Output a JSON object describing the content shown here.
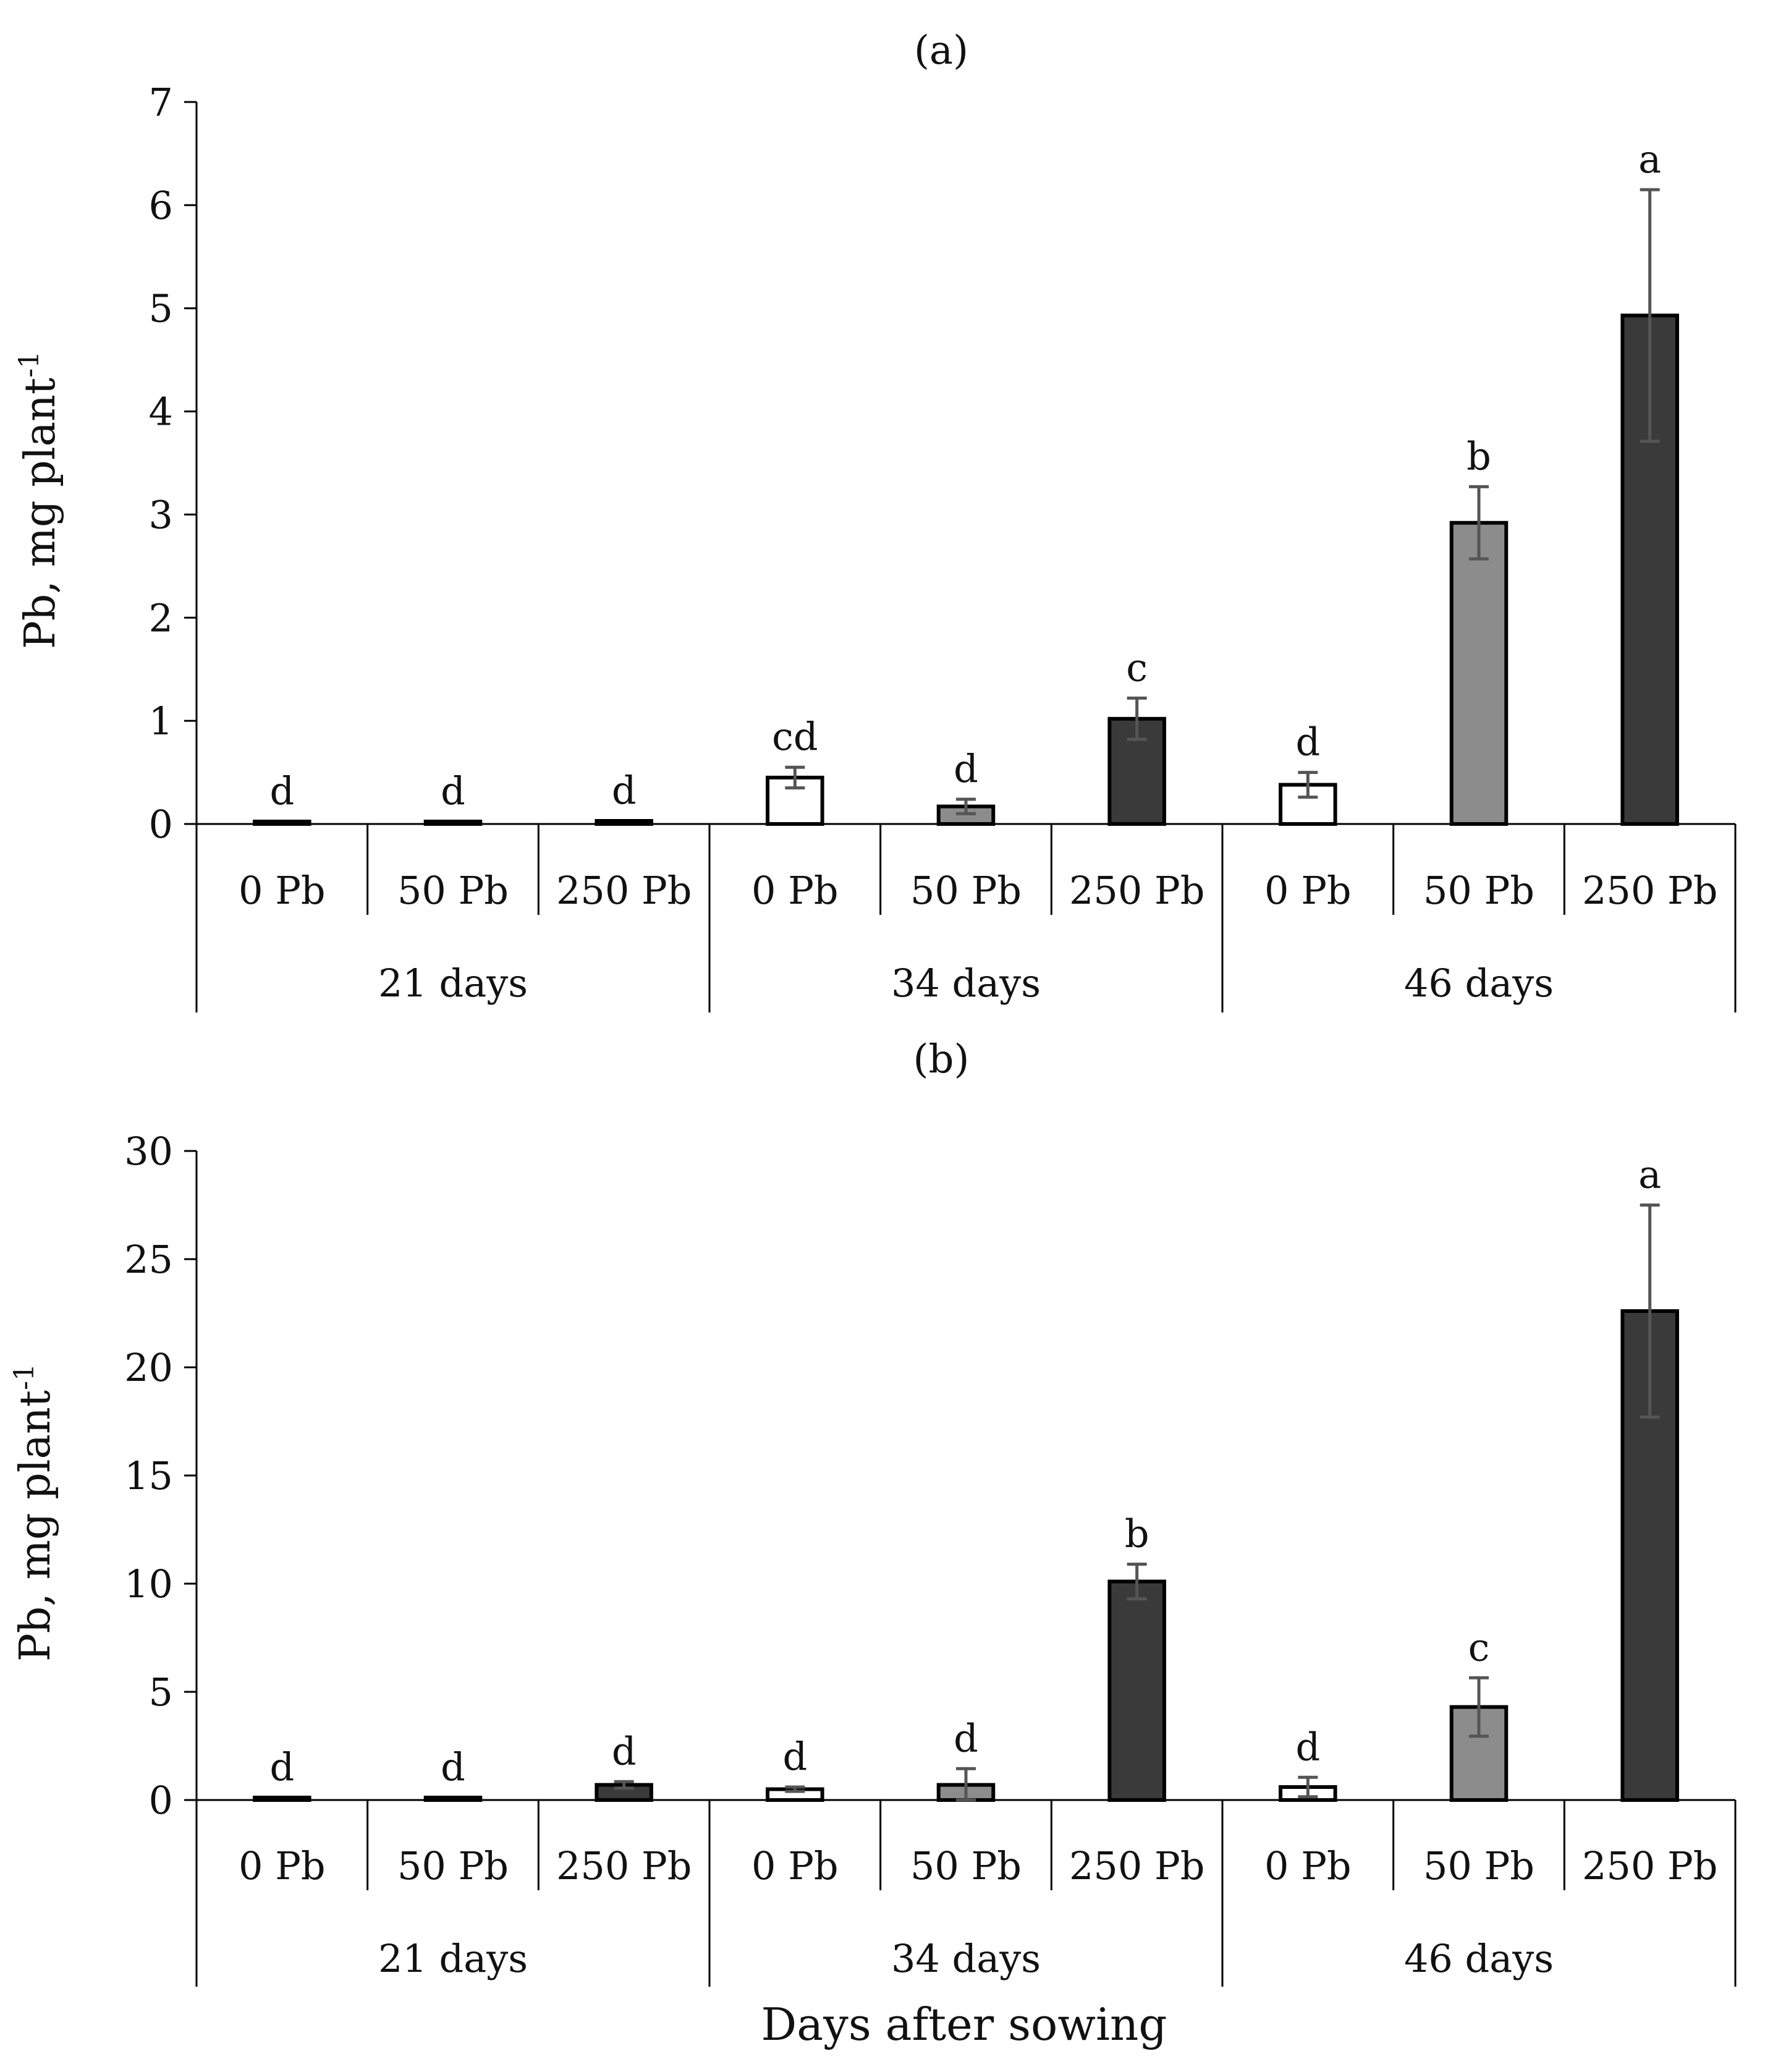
{
  "figure": {
    "x_title": "Days after sowing",
    "colors": {
      "0 Pb": "#ffffff",
      "50 Pb": "#8c8c8c",
      "250 Pb": "#3a3a3a",
      "stroke": "#000000",
      "error": "#555555"
    }
  },
  "chart_data": [
    {
      "type": "bar",
      "title": "(a)",
      "ylabel": "Pb, mg plant",
      "ylabel_sup": "-1",
      "xlabel": "",
      "ylim": [
        0,
        7
      ],
      "yticks": [
        0,
        1,
        2,
        3,
        4,
        5,
        6,
        7
      ],
      "groups": [
        "21 days",
        "34 days",
        "46 days"
      ],
      "categories": [
        "0 Pb",
        "50 Pb",
        "250 Pb"
      ],
      "bars": [
        {
          "group": "21 days",
          "category": "0 Pb",
          "value": 0.02,
          "error": 0.0,
          "label": "d"
        },
        {
          "group": "21 days",
          "category": "50 Pb",
          "value": 0.02,
          "error": 0.0,
          "label": "d"
        },
        {
          "group": "21 days",
          "category": "250 Pb",
          "value": 0.03,
          "error": 0.0,
          "label": "d"
        },
        {
          "group": "34 days",
          "category": "0 Pb",
          "value": 0.45,
          "error": 0.1,
          "label": "cd"
        },
        {
          "group": "34 days",
          "category": "50 Pb",
          "value": 0.17,
          "error": 0.07,
          "label": "d"
        },
        {
          "group": "34 days",
          "category": "250 Pb",
          "value": 1.02,
          "error": 0.2,
          "label": "c"
        },
        {
          "group": "46 days",
          "category": "0 Pb",
          "value": 0.38,
          "error": 0.12,
          "label": "d"
        },
        {
          "group": "46 days",
          "category": "50 Pb",
          "value": 2.92,
          "error": 0.35,
          "label": "b"
        },
        {
          "group": "46 days",
          "category": "250 Pb",
          "value": 4.93,
          "error": 1.22,
          "label": "a"
        }
      ]
    },
    {
      "type": "bar",
      "title": "(b)",
      "ylabel": "Pb, mg plant",
      "ylabel_sup": "-1",
      "xlabel": "Days after sowing",
      "ylim": [
        0,
        30
      ],
      "yticks": [
        0,
        5,
        10,
        15,
        20,
        25,
        30
      ],
      "groups": [
        "21 days",
        "34 days",
        "46 days"
      ],
      "categories": [
        "0 Pb",
        "50 Pb",
        "250 Pb"
      ],
      "bars": [
        {
          "group": "21 days",
          "category": "0 Pb",
          "value": 0.05,
          "error": 0.0,
          "label": "d"
        },
        {
          "group": "21 days",
          "category": "50 Pb",
          "value": 0.05,
          "error": 0.0,
          "label": "d"
        },
        {
          "group": "21 days",
          "category": "250 Pb",
          "value": 0.7,
          "error": 0.15,
          "label": "d"
        },
        {
          "group": "34 days",
          "category": "0 Pb",
          "value": 0.5,
          "error": 0.1,
          "label": "d"
        },
        {
          "group": "34 days",
          "category": "50 Pb",
          "value": 0.7,
          "error": 0.75,
          "label": "d"
        },
        {
          "group": "34 days",
          "category": "250 Pb",
          "value": 10.1,
          "error": 0.8,
          "label": "b"
        },
        {
          "group": "46 days",
          "category": "0 Pb",
          "value": 0.6,
          "error": 0.45,
          "label": "d"
        },
        {
          "group": "46 days",
          "category": "50 Pb",
          "value": 4.3,
          "error": 1.35,
          "label": "c"
        },
        {
          "group": "46 days",
          "category": "250 Pb",
          "value": 22.6,
          "error": 4.9,
          "label": "a"
        }
      ]
    }
  ]
}
